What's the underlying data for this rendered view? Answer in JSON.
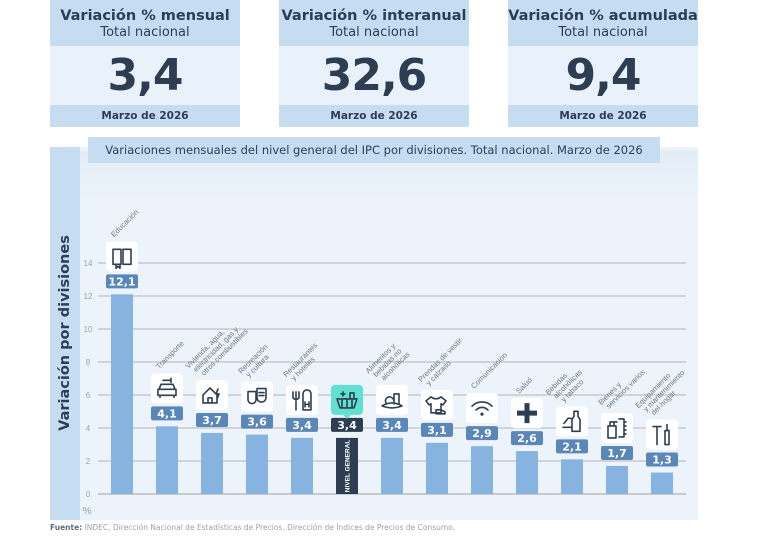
{
  "kpis": [
    {
      "title": "Variación % mensual",
      "subtitle": "Total nacional",
      "value": "3,4",
      "period": "Marzo de 2026"
    },
    {
      "title": "Variación % interanual",
      "subtitle": "Total nacional",
      "value": "32,6",
      "period": "Marzo de 2026"
    },
    {
      "title": "Variación % acumulada",
      "subtitle": "Total nacional",
      "value": "9,4",
      "period": "Marzo de 2026"
    }
  ],
  "colors": {
    "bar": "#86b3e0",
    "bar_highlight": "#2d3e52",
    "label_box": "#5b87b8",
    "label_box_highlight": "#2d3e52",
    "icon_highlight_bg": "#5fe0d0",
    "text_dark": "#2d3e52",
    "grid": "#c7c9cc"
  },
  "chart_data": {
    "type": "bar",
    "title": "Variaciones mensuales del nivel general del IPC por divisiones. Total nacional. Marzo de 2026",
    "ylabel": "Variación por divisiones",
    "yunit": "%",
    "ylim": [
      0,
      14
    ],
    "yticks": [
      0,
      2,
      4,
      6,
      8,
      10,
      12,
      14
    ],
    "grid": true,
    "categories": [
      {
        "name": "Educación",
        "lines": [
          "Educación"
        ],
        "value": 12.1,
        "label": "12,1",
        "icon": "book-icon"
      },
      {
        "name": "Transporte",
        "lines": [
          "Transporte"
        ],
        "value": 4.1,
        "label": "4,1",
        "icon": "car-icon"
      },
      {
        "name": "Vivienda, agua, electricidad, gas y otros combustibles",
        "lines": [
          "Vivienda, agua,",
          "electricidad, gas y",
          "otros combustibles"
        ],
        "value": 3.7,
        "label": "3,7",
        "icon": "house-energy-icon"
      },
      {
        "name": "Recreación y cultura",
        "lines": [
          "Recreación",
          "y cultura"
        ],
        "value": 3.6,
        "label": "3,6",
        "icon": "theater-masks-icon"
      },
      {
        "name": "Restaurantes y hoteles",
        "lines": [
          "Restaurantes",
          "y hoteles"
        ],
        "value": 3.4,
        "label": "3,4",
        "icon": "fork-hotel-icon"
      },
      {
        "name": "Nivel general",
        "lines": [],
        "value": 3.4,
        "label": "3,4",
        "icon": "shopping-basket-icon",
        "highlight": true,
        "bar_text": "NIVEL GENERAL"
      },
      {
        "name": "Alimentos y bebidas no alcohólicas",
        "lines": [
          "Alimentos y",
          "bebidas no",
          "alcohólicas"
        ],
        "value": 3.4,
        "label": "3,4",
        "icon": "food-icon"
      },
      {
        "name": "Prendas de vestir y calzado",
        "lines": [
          "Prendas de vestir",
          "y calzado"
        ],
        "value": 3.1,
        "label": "3,1",
        "icon": "tshirt-shoe-icon"
      },
      {
        "name": "Comunicación",
        "lines": [
          "Comunicación"
        ],
        "value": 2.9,
        "label": "2,9",
        "icon": "wifi-icon"
      },
      {
        "name": "Salud",
        "lines": [
          "Salud"
        ],
        "value": 2.6,
        "label": "2,6",
        "icon": "health-cross-icon"
      },
      {
        "name": "Bebidas alcohólicas y tabaco",
        "lines": [
          "Bebidas",
          "alcohólicas",
          "y tabaco"
        ],
        "value": 2.1,
        "label": "2,1",
        "icon": "bottle-icon"
      },
      {
        "name": "Bienes y servicios varios",
        "lines": [
          "Bienes y",
          "servicios varios"
        ],
        "value": 1.7,
        "label": "1,7",
        "icon": "spray-comb-icon"
      },
      {
        "name": "Equipamiento y mantenimiento del hogar",
        "lines": [
          "Equipamiento",
          "y mantenimiento",
          "del hogar"
        ],
        "value": 1.3,
        "label": "1,3",
        "icon": "tools-icon"
      }
    ]
  },
  "source": {
    "label": "Fuente:",
    "text": " INDEC, Dirección Nacional de Estadísticas de Precios. Dirección de Índices de Precios de Consumo."
  }
}
